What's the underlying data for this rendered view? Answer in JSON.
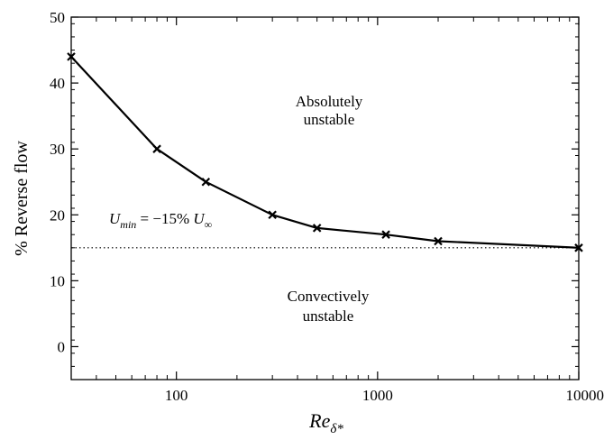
{
  "chart_data": {
    "type": "line",
    "xscale": "log",
    "xlim": [
      30,
      10000
    ],
    "ylim": [
      -5,
      50
    ],
    "xticks": [
      100,
      1000,
      10000
    ],
    "xtick_labels": [
      "100",
      "1000",
      "10000"
    ],
    "yticks": [
      0,
      10,
      20,
      30,
      40,
      50
    ],
    "ytick_labels": [
      "0",
      "10",
      "20",
      "30",
      "40",
      "50"
    ],
    "ylabel": "% Reverse flow",
    "xlabel": {
      "base": "Re",
      "sub": "δ*"
    },
    "grid": false,
    "series": [
      {
        "x": [
          30,
          80,
          140,
          300,
          500,
          1100,
          2000,
          10000
        ],
        "y": [
          44,
          30,
          25,
          20,
          18,
          17,
          16,
          15
        ],
        "marker": "x",
        "color": "#000000"
      }
    ],
    "threshold": {
      "y": 15,
      "style": "dotted",
      "label": {
        "u": "U",
        "min": "min",
        "mid": " = −15% ",
        "inf": "∞"
      }
    },
    "region_labels": [
      {
        "lines": [
          "Absolutely",
          "unstable"
        ]
      },
      {
        "lines": [
          "Convectively",
          "unstable"
        ]
      }
    ]
  }
}
